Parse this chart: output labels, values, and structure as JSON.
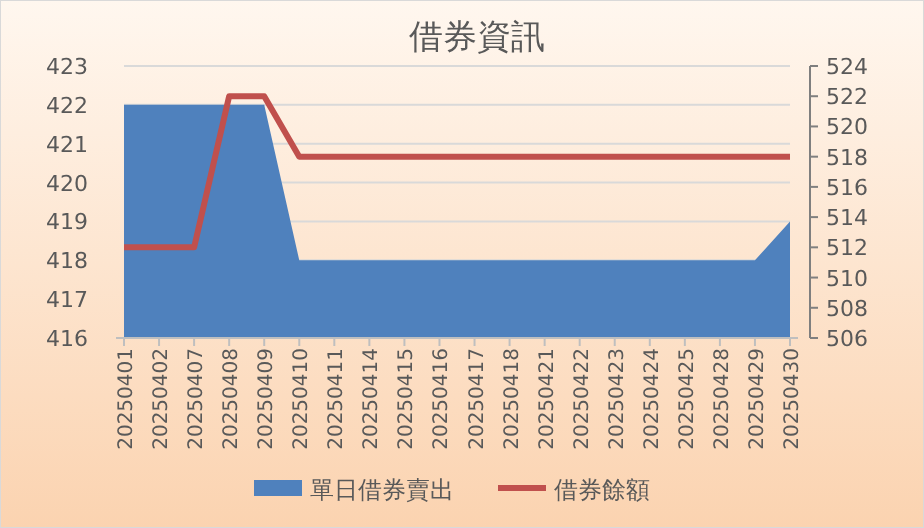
{
  "chart_data": {
    "type": "area",
    "title": "借券資訊",
    "categories": [
      "20250401",
      "20250402",
      "20250407",
      "20250408",
      "20250409",
      "20250410",
      "20250411",
      "20250414",
      "20250415",
      "20250416",
      "20250417",
      "20250418",
      "20250421",
      "20250422",
      "20250423",
      "20250424",
      "20250425",
      "20250428",
      "20250429",
      "20250430"
    ],
    "series": [
      {
        "name": "單日借券賣出",
        "color": "#4f81bd",
        "values": [
          422,
          422,
          422,
          422,
          422,
          418,
          418,
          418,
          418,
          418,
          418,
          418,
          418,
          418,
          418,
          418,
          418,
          418,
          418,
          419
        ]
      },
      {
        "name": "借券餘額",
        "type": "line",
        "axis": "y2",
        "color": "#c0504d",
        "values": [
          512,
          512,
          512,
          522,
          522,
          518,
          518,
          518,
          518,
          518,
          518,
          518,
          518,
          518,
          518,
          518,
          518,
          518,
          518,
          518
        ]
      }
    ],
    "ylim": [
      416,
      423
    ],
    "yticks": [
      416,
      417,
      418,
      419,
      420,
      421,
      422,
      423
    ],
    "y2lim": [
      506,
      524
    ],
    "y2ticks": [
      506,
      508,
      510,
      512,
      514,
      516,
      518,
      520,
      522,
      524
    ],
    "grid": "y",
    "legend": "bottom",
    "marker": "none",
    "line_style": "solid"
  }
}
